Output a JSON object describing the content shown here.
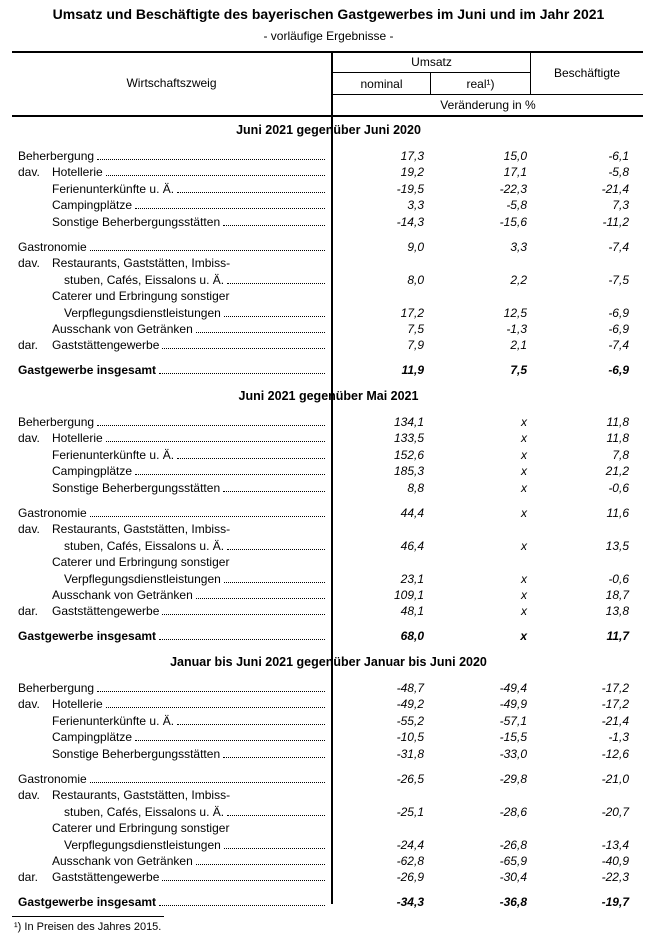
{
  "title": "Umsatz und Beschäftigte des bayerischen Gastgewerbes im Juni und im Jahr 2021",
  "subtitle": "- vorläufige Ergebnisse -",
  "header": {
    "col_label": "Wirtschaftszweig",
    "umsatz": "Umsatz",
    "nominal": "nominal",
    "real": "real¹)",
    "beschaeftigte": "Beschäftigte",
    "unit": "Veränderung in %"
  },
  "sections": [
    {
      "title": "Juni 2021 gegenüber Juni 2020",
      "rows": [
        {
          "pre": "",
          "label": "Beherbergung",
          "indent": 0,
          "values": [
            "17,3",
            "15,0",
            "-6,1"
          ]
        },
        {
          "pre": "dav.",
          "label": "Hotellerie",
          "indent": 1,
          "values": [
            "19,2",
            "17,1",
            "-5,8"
          ]
        },
        {
          "pre": "",
          "label": "Ferienunterkünfte u. Ä.",
          "indent": 1,
          "values": [
            "-19,5",
            "-22,3",
            "-21,4"
          ]
        },
        {
          "pre": "",
          "label": "Campingplätze",
          "indent": 1,
          "values": [
            "3,3",
            "-5,8",
            "7,3"
          ]
        },
        {
          "pre": "",
          "label": "Sonstige Beherbergungsstätten",
          "indent": 1,
          "values": [
            "-14,3",
            "-15,6",
            "-11,2"
          ]
        },
        {
          "pre": "",
          "label": "Gastronomie",
          "indent": 0,
          "gap": 1,
          "values": [
            "9,0",
            "3,3",
            "-7,4"
          ]
        },
        {
          "pre": "dav.",
          "label": "Restaurants, Gaststätten, Imbiss-",
          "indent": 1,
          "nodots": 1,
          "values": []
        },
        {
          "pre": "",
          "label": "stuben, Cafés, Eissalons u. Ä.",
          "indent": 2,
          "values": [
            "8,0",
            "2,2",
            "-7,5"
          ]
        },
        {
          "pre": "",
          "label": "Caterer und Erbringung sonstiger",
          "indent": 1,
          "nodots": 1,
          "values": []
        },
        {
          "pre": "",
          "label": "Verpflegungsdienstleistungen",
          "indent": 2,
          "values": [
            "17,2",
            "12,5",
            "-6,9"
          ]
        },
        {
          "pre": "",
          "label": "Ausschank von Getränken",
          "indent": 1,
          "values": [
            "7,5",
            "-1,3",
            "-6,9"
          ]
        },
        {
          "pre": "dar.",
          "label": "Gaststättengewerbe",
          "indent": 1,
          "values": [
            "7,9",
            "2,1",
            "-7,4"
          ]
        },
        {
          "pre": "",
          "label": "Gastgewerbe insgesamt",
          "indent": 0,
          "gap": 2,
          "bold": 1,
          "values": [
            "11,9",
            "7,5",
            "-6,9"
          ]
        }
      ]
    },
    {
      "title": "Juni 2021 gegenüber Mai 2021",
      "rows": [
        {
          "pre": "",
          "label": "Beherbergung",
          "indent": 0,
          "values": [
            "134,1",
            "x",
            "11,8"
          ]
        },
        {
          "pre": "dav.",
          "label": "Hotellerie",
          "indent": 1,
          "values": [
            "133,5",
            "x",
            "11,8"
          ]
        },
        {
          "pre": "",
          "label": "Ferienunterkünfte u. Ä.",
          "indent": 1,
          "values": [
            "152,6",
            "x",
            "7,8"
          ]
        },
        {
          "pre": "",
          "label": "Campingplätze",
          "indent": 1,
          "values": [
            "185,3",
            "x",
            "21,2"
          ]
        },
        {
          "pre": "",
          "label": "Sonstige Beherbergungsstätten",
          "indent": 1,
          "values": [
            "8,8",
            "x",
            "-0,6"
          ]
        },
        {
          "pre": "",
          "label": "Gastronomie",
          "indent": 0,
          "gap": 1,
          "values": [
            "44,4",
            "x",
            "11,6"
          ]
        },
        {
          "pre": "dav.",
          "label": "Restaurants, Gaststätten, Imbiss-",
          "indent": 1,
          "nodots": 1,
          "values": []
        },
        {
          "pre": "",
          "label": "stuben, Cafés, Eissalons u. Ä.",
          "indent": 2,
          "values": [
            "46,4",
            "x",
            "13,5"
          ]
        },
        {
          "pre": "",
          "label": "Caterer und Erbringung sonstiger",
          "indent": 1,
          "nodots": 1,
          "values": []
        },
        {
          "pre": "",
          "label": "Verpflegungsdienstleistungen",
          "indent": 2,
          "values": [
            "23,1",
            "x",
            "-0,6"
          ]
        },
        {
          "pre": "",
          "label": "Ausschank von Getränken",
          "indent": 1,
          "values": [
            "109,1",
            "x",
            "18,7"
          ]
        },
        {
          "pre": "dar.",
          "label": "Gaststättengewerbe",
          "indent": 1,
          "values": [
            "48,1",
            "x",
            "13,8"
          ]
        },
        {
          "pre": "",
          "label": "Gastgewerbe insgesamt",
          "indent": 0,
          "gap": 2,
          "bold": 1,
          "values": [
            "68,0",
            "x",
            "11,7"
          ]
        }
      ]
    },
    {
      "title": "Januar bis Juni 2021 gegenüber Januar bis Juni 2020",
      "rows": [
        {
          "pre": "",
          "label": "Beherbergung",
          "indent": 0,
          "values": [
            "-48,7",
            "-49,4",
            "-17,2"
          ]
        },
        {
          "pre": "dav.",
          "label": "Hotellerie",
          "indent": 1,
          "values": [
            "-49,2",
            "-49,9",
            "-17,2"
          ]
        },
        {
          "pre": "",
          "label": "Ferienunterkünfte u. Ä.",
          "indent": 1,
          "values": [
            "-55,2",
            "-57,1",
            "-21,4"
          ]
        },
        {
          "pre": "",
          "label": "Campingplätze",
          "indent": 1,
          "values": [
            "-10,5",
            "-15,5",
            "-1,3"
          ]
        },
        {
          "pre": "",
          "label": "Sonstige Beherbergungsstätten",
          "indent": 1,
          "values": [
            "-31,8",
            "-33,0",
            "-12,6"
          ]
        },
        {
          "pre": "",
          "label": "Gastronomie",
          "indent": 0,
          "gap": 1,
          "values": [
            "-26,5",
            "-29,8",
            "-21,0"
          ]
        },
        {
          "pre": "dav.",
          "label": "Restaurants, Gaststätten, Imbiss-",
          "indent": 1,
          "nodots": 1,
          "values": []
        },
        {
          "pre": "",
          "label": "stuben, Cafés, Eissalons u. Ä.",
          "indent": 2,
          "values": [
            "-25,1",
            "-28,6",
            "-20,7"
          ]
        },
        {
          "pre": "",
          "label": "Caterer und Erbringung sonstiger",
          "indent": 1,
          "nodots": 1,
          "values": []
        },
        {
          "pre": "",
          "label": "Verpflegungsdienstleistungen",
          "indent": 2,
          "values": [
            "-24,4",
            "-26,8",
            "-13,4"
          ]
        },
        {
          "pre": "",
          "label": "Ausschank von Getränken",
          "indent": 1,
          "values": [
            "-62,8",
            "-65,9",
            "-40,9"
          ]
        },
        {
          "pre": "dar.",
          "label": "Gaststättengewerbe",
          "indent": 1,
          "values": [
            "-26,9",
            "-30,4",
            "-22,3"
          ]
        },
        {
          "pre": "",
          "label": "Gastgewerbe insgesamt",
          "indent": 0,
          "gap": 2,
          "bold": 1,
          "values": [
            "-34,3",
            "-36,8",
            "-19,7"
          ]
        }
      ]
    }
  ],
  "footnote": "¹) In Preisen des Jahres 2015."
}
